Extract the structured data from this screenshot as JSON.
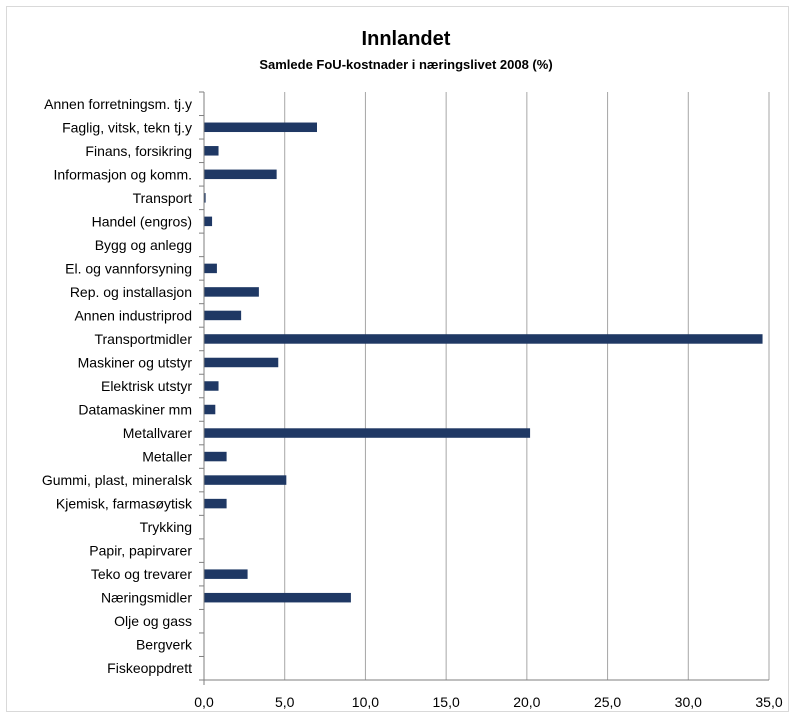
{
  "chart_data": {
    "type": "bar",
    "orientation": "horizontal",
    "title": "Innlandet",
    "subtitle": "Samlede FoU-kostnader i næringslivet 2008 (%)",
    "categories": [
      "Annen forretningsm. tj.y",
      "Faglig, vitsk, tekn tj.y",
      "Finans, forsikring",
      "Informasjon og komm.",
      "Transport",
      "Handel (engros)",
      "Bygg og anlegg",
      "El. og vannforsyning",
      "Rep. og installasjon",
      "Annen industriprod",
      "Transportmidler",
      "Maskiner og utstyr",
      "Elektrisk utstyr",
      "Datamaskiner mm",
      "Metallvarer",
      "Metaller",
      "Gummi, plast, mineralsk",
      "Kjemisk, farmasøytisk",
      "Trykking",
      "Papir, papirvarer",
      "Teko og trevarer",
      "Næringsmidler",
      "Olje og gass",
      "Bergverk",
      "Fiskeoppdrett"
    ],
    "values": [
      0,
      7.0,
      0.9,
      4.5,
      0.1,
      0.5,
      0,
      0.8,
      3.4,
      2.3,
      34.6,
      4.6,
      0.9,
      0.7,
      20.2,
      1.4,
      5.1,
      1.4,
      0,
      0,
      2.7,
      9.1,
      0,
      0,
      0
    ],
    "xlim": [
      0,
      35
    ],
    "xticks": [
      "0,0",
      "5,0",
      "10,0",
      "15,0",
      "20,0",
      "25,0",
      "30,0",
      "35,0"
    ],
    "xlabel": "",
    "ylabel": "",
    "grid": "vertical",
    "legend": "none",
    "bar_color": "#1f3864",
    "grid_color": "#a6a6a6"
  }
}
